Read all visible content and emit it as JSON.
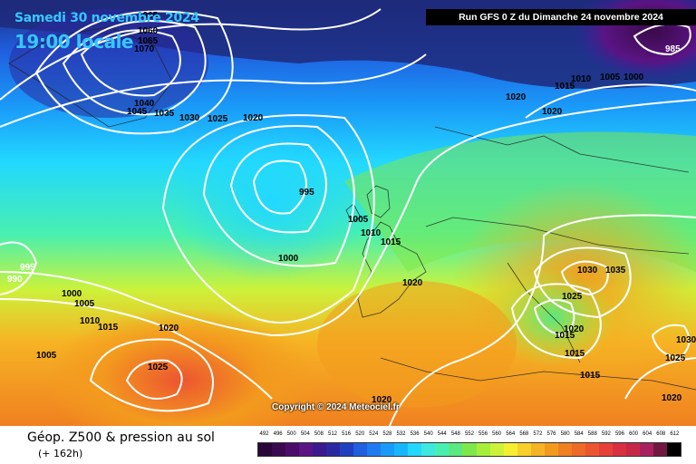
{
  "header": {
    "date": "Samedi 30 novembre 2024",
    "time": "19:00 locale",
    "run": "Run GFS 0 Z du Dimanche 24 novembre 2024"
  },
  "copyright": "Copyright © 2024 Meteociel.fr",
  "footer": {
    "title": "Géop. Z500 & pression au sol",
    "subtitle": "(+ 162h)"
  },
  "colors": {
    "deep_purple": "#3b0a4a",
    "navy": "#1f2a7a",
    "blue": "#1f5fe0",
    "cyan": "#22d8ff",
    "green": "#7ee84a",
    "yellow": "#f6ef30",
    "orange": "#f39a1e",
    "red_orange": "#f06a2a",
    "contour": "#ffffff"
  },
  "scale": {
    "labels": [
      "492",
      "496",
      "500",
      "504",
      "508",
      "512",
      "516",
      "520",
      "524",
      "528",
      "532",
      "536",
      "540",
      "544",
      "548",
      "552",
      "556",
      "560",
      "564",
      "568",
      "572",
      "576",
      "580",
      "584",
      "588",
      "592",
      "596",
      "600",
      "604",
      "608",
      "612"
    ],
    "colors": [
      "#2a0638",
      "#3a0a50",
      "#4c0d6a",
      "#5a1484",
      "#3a1a8e",
      "#2a2aa0",
      "#2040c0",
      "#1f5fe0",
      "#1e7cf0",
      "#1a9af8",
      "#16b6fc",
      "#22d8ff",
      "#3ee8e0",
      "#48f0b0",
      "#5ae880",
      "#7ee84a",
      "#a6ee3c",
      "#ccf23a",
      "#f6ef30",
      "#f8d028",
      "#f6b424",
      "#f39a1e",
      "#f08020",
      "#ee6a28",
      "#ec5530",
      "#e64038",
      "#d83040",
      "#c82848",
      "#a82060",
      "#701840",
      "#000000"
    ]
  },
  "pressure_labels": [
    {
      "text": "1065"
    },
    {
      "text": "1060"
    },
    {
      "text": "1065"
    },
    {
      "text": "1070"
    },
    {
      "text": "1040"
    },
    {
      "text": "1045"
    },
    {
      "text": "1035"
    },
    {
      "text": "1030"
    },
    {
      "text": "1025"
    },
    {
      "text": "1020"
    },
    {
      "text": "995"
    },
    {
      "text": "1005"
    },
    {
      "text": "1010"
    },
    {
      "text": "1015"
    },
    {
      "text": "1000"
    },
    {
      "text": "1020"
    },
    {
      "text": "995"
    },
    {
      "text": "990"
    },
    {
      "text": "1000"
    },
    {
      "text": "1005"
    },
    {
      "text": "1010"
    },
    {
      "text": "1015"
    },
    {
      "text": "1020"
    },
    {
      "text": "1005"
    },
    {
      "text": "1025"
    },
    {
      "text": "1020"
    },
    {
      "text": "1015"
    },
    {
      "text": "1010"
    },
    {
      "text": "1005"
    },
    {
      "text": "1000"
    },
    {
      "text": "1020"
    },
    {
      "text": "985"
    },
    {
      "text": "1030"
    },
    {
      "text": "1035"
    },
    {
      "text": "1025"
    },
    {
      "text": "1020"
    },
    {
      "text": "1015"
    },
    {
      "text": "1015"
    },
    {
      "text": "1015"
    },
    {
      "text": "1030"
    },
    {
      "text": "1025"
    },
    {
      "text": "1020"
    },
    {
      "text": "1020"
    }
  ]
}
